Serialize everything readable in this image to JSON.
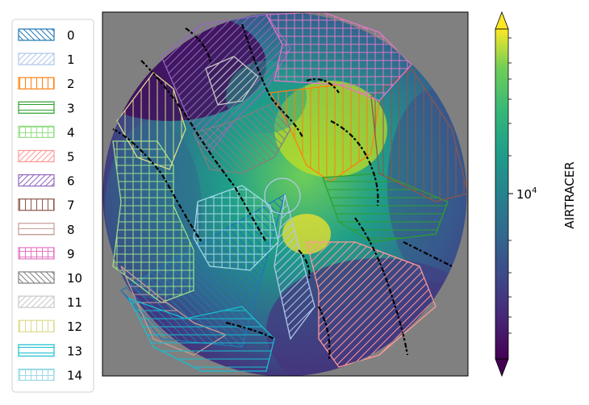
{
  "chart_data": {
    "type": "heatmap",
    "title": "",
    "colorbar": {
      "label": "AIRTRACER",
      "scale": "log",
      "colormap": "viridis",
      "tick_label": "10^4",
      "tick_value": 10000,
      "extend": "both"
    },
    "map": {
      "projection": "north-polar",
      "background": "#808080",
      "coastlines": "#000000"
    },
    "legend": {
      "placement": "left",
      "entries": [
        {
          "label": "0",
          "color": "#1f77b4",
          "hatch": "diag-desc"
        },
        {
          "label": "1",
          "color": "#aec7e8",
          "hatch": "diag-asc"
        },
        {
          "label": "2",
          "color": "#ff7f0e",
          "hatch": "vertical"
        },
        {
          "label": "3",
          "color": "#2ca02c",
          "hatch": "horizontal"
        },
        {
          "label": "4",
          "color": "#98df8a",
          "hatch": "grid"
        },
        {
          "label": "5",
          "color": "#ff9896",
          "hatch": "diag-asc"
        },
        {
          "label": "6",
          "color": "#9467bd",
          "hatch": "diag-asc"
        },
        {
          "label": "7",
          "color": "#8c564b",
          "hatch": "vertical"
        },
        {
          "label": "8",
          "color": "#c49c94",
          "hatch": "horizontal"
        },
        {
          "label": "9",
          "color": "#e377c2",
          "hatch": "grid"
        },
        {
          "label": "10",
          "color": "#7f7f7f",
          "hatch": "diag-desc"
        },
        {
          "label": "11",
          "color": "#c7c7c7",
          "hatch": "diag-asc"
        },
        {
          "label": "12",
          "color": "#dbdb8d",
          "hatch": "vertical"
        },
        {
          "label": "13",
          "color": "#17becf",
          "hatch": "horizontal"
        },
        {
          "label": "14",
          "color": "#9edae5",
          "hatch": "grid"
        }
      ]
    }
  }
}
